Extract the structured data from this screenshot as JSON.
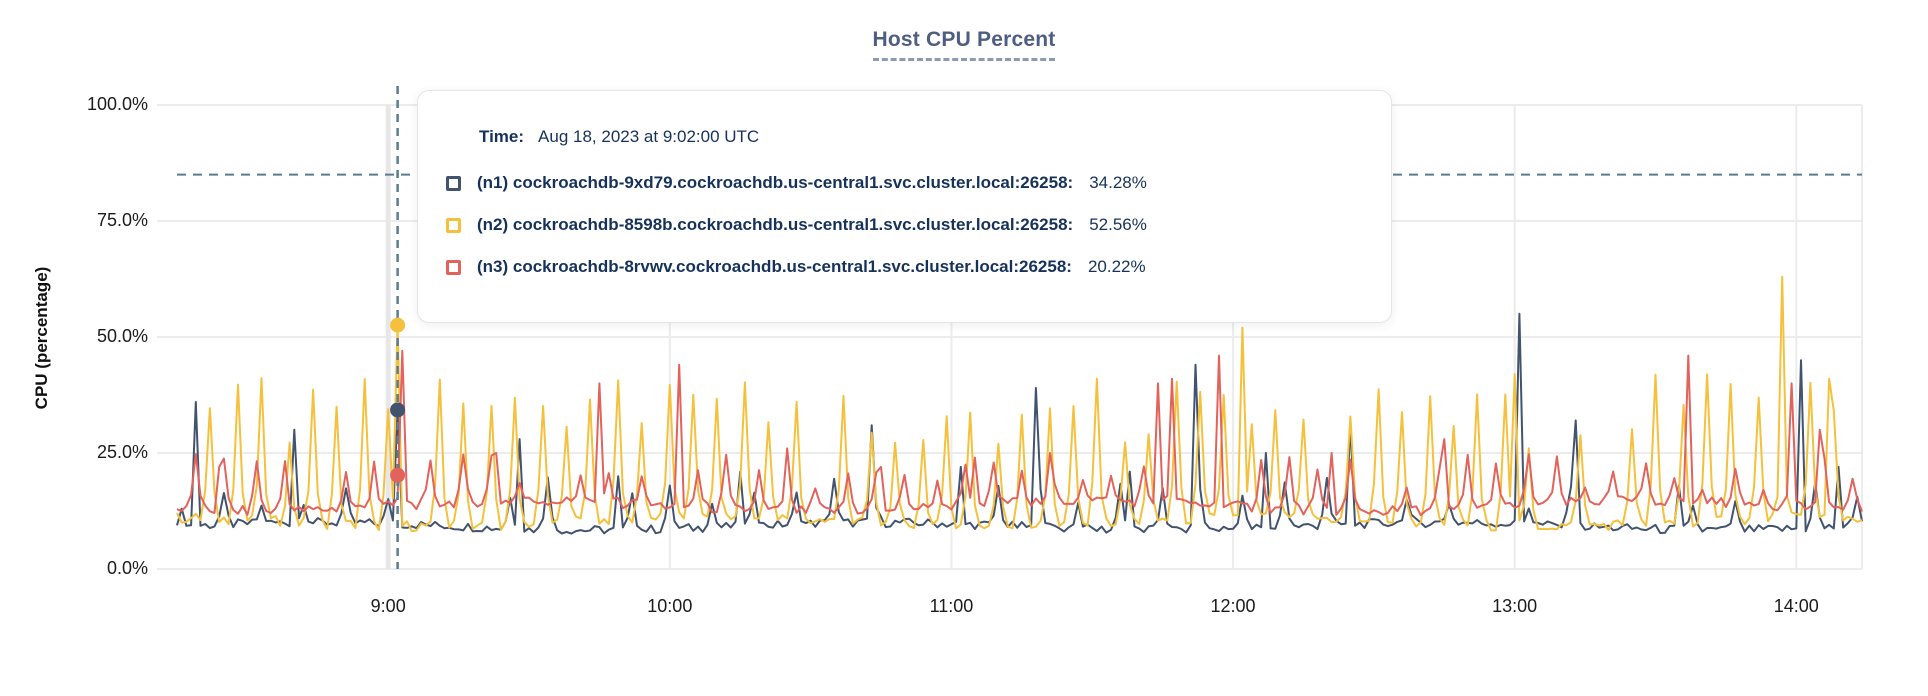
{
  "page": {
    "title": "Host CPU Percent"
  },
  "y_axis": {
    "title": "CPU (percentage)"
  },
  "tooltip": {
    "time_label": "Time:",
    "time_value": "Aug 18, 2023 at 9:02:00 UTC",
    "rows": [
      {
        "label": "(n1) cockroachdb-9xd79.cockroachdb.us-central1.svc.cluster.local:26258:",
        "value": "34.28%"
      },
      {
        "label": "(n2) cockroachdb-8598b.cockroachdb.us-central1.svc.cluster.local:26258:",
        "value": "52.56%"
      },
      {
        "label": "(n3) cockroachdb-8rvwv.cockroachdb.us-central1.svc.cluster.local:26258:",
        "value": "20.22%"
      }
    ]
  },
  "colors": {
    "grid": "#ececec",
    "crosshair_dash": "#5a7d91",
    "threshold_dash": "#5a7d91",
    "title_accent": "#4e5e81",
    "tooltip_text": "#16325b"
  },
  "chart_data": {
    "type": "line",
    "title": "Host CPU Percent",
    "xlabel": "",
    "ylabel": "CPU (percentage)",
    "ylim": [
      0,
      100
    ],
    "grid": true,
    "legend_position": "tooltip-overlay",
    "threshold_pct": 85,
    "x_start_time": "8:15",
    "x_end_time": "14:14",
    "x_total_min": 359,
    "yticks": [
      {
        "label": "0.0%",
        "value": 0
      },
      {
        "label": "25.0%",
        "value": 25
      },
      {
        "label": "50.0%",
        "value": 50
      },
      {
        "label": "75.0%",
        "value": 75
      },
      {
        "label": "100.0%",
        "value": 100
      }
    ],
    "xticks": [
      {
        "label": "9:00",
        "t": 45,
        "emphasis": true
      },
      {
        "label": "10:00",
        "t": 105
      },
      {
        "label": "11:00",
        "t": 165
      },
      {
        "label": "12:00",
        "t": 225
      },
      {
        "label": "13:00",
        "t": 285
      },
      {
        "label": "14:00",
        "t": 345
      }
    ],
    "hover": {
      "t": 47,
      "time": "Aug 18, 2023 at 9:02:00 UTC",
      "values": [
        34.28,
        52.56,
        20.22
      ]
    },
    "series": [
      {
        "id": "n1",
        "name": "(n1) cockroachdb-9xd79.cockroachdb.us-central1.svc.cluster.local:26258",
        "color": "#42536e",
        "hover_value": 34.28,
        "baseline": 9.2,
        "noise": 1.0,
        "wander": 0.8,
        "spike_period": 8.7,
        "spike_phase": 1,
        "spike_range": [
          13,
          20
        ],
        "spike_prob": 0.7,
        "key_spikes": [
          [
            4,
            36
          ],
          [
            25,
            30
          ],
          [
            47,
            34.28
          ],
          [
            73,
            28
          ],
          [
            94,
            20
          ],
          [
            120,
            21
          ],
          [
            148,
            31
          ],
          [
            167,
            22
          ],
          [
            183,
            39
          ],
          [
            203,
            21
          ],
          [
            217,
            44
          ],
          [
            232,
            25
          ],
          [
            250,
            31
          ],
          [
            286,
            55
          ],
          [
            298,
            32
          ],
          [
            320,
            18
          ],
          [
            346,
            45
          ],
          [
            354,
            22
          ]
        ]
      },
      {
        "id": "n2",
        "name": "(n2) cockroachdb-8598b.cockroachdb.us-central1.svc.cluster.local:26258",
        "color": "#f5c13c",
        "hover_value": 52.56,
        "baseline": 10.2,
        "noise": 1.2,
        "wander": 0.9,
        "spike_period": 5.4,
        "spike_phase": 2,
        "spike_range": [
          26,
          42
        ],
        "spike_prob": 0.92,
        "key_spikes": [
          [
            47,
            52.56
          ],
          [
            227,
            52
          ],
          [
            285,
            42
          ],
          [
            342,
            63
          ],
          [
            352,
            41
          ]
        ]
      },
      {
        "id": "n3",
        "name": "(n3) cockroachdb-8rvwv.cockroachdb.us-central1.svc.cluster.local:26258",
        "color": "#e2625c",
        "hover_value": 20.22,
        "baseline": 13.6,
        "noise": 1.1,
        "wander": 1.1,
        "spike_period": 6.3,
        "spike_phase": 4,
        "spike_range": [
          17,
          25
        ],
        "spike_prob": 0.85,
        "key_spikes": [
          [
            9,
            22
          ],
          [
            48,
            47
          ],
          [
            68,
            25
          ],
          [
            90,
            40
          ],
          [
            107,
            44
          ],
          [
            130,
            26
          ],
          [
            150,
            22
          ],
          [
            170,
            24
          ],
          [
            186,
            25
          ],
          [
            209,
            40
          ],
          [
            212,
            41
          ],
          [
            222,
            46
          ],
          [
            246,
            25
          ],
          [
            270,
            28
          ],
          [
            322,
            46
          ],
          [
            344,
            40
          ],
          [
            350,
            30
          ]
        ]
      }
    ]
  }
}
